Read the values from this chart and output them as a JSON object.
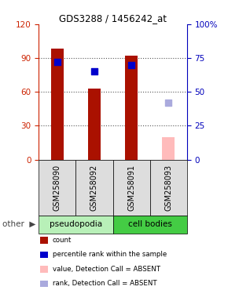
{
  "title": "GDS3288 / 1456242_at",
  "samples": [
    "GSM258090",
    "GSM258092",
    "GSM258091",
    "GSM258093"
  ],
  "groups": [
    "pseudopodia",
    "pseudopodia",
    "cell bodies",
    "cell bodies"
  ],
  "group_colors": {
    "pseudopodia": "#b8f0b8",
    "cell bodies": "#44cc44"
  },
  "bar_color_present": "#aa1100",
  "bar_color_absent": "#ffbbbb",
  "dot_color_present": "#0000cc",
  "dot_color_absent": "#aaaadd",
  "counts": [
    98,
    63,
    92,
    20
  ],
  "ranks": [
    72,
    65,
    70,
    42
  ],
  "detection": [
    "P",
    "P",
    "P",
    "A"
  ],
  "ylim_left": [
    0,
    120
  ],
  "ylim_right": [
    0,
    100
  ],
  "yticks_left": [
    0,
    30,
    60,
    90,
    120
  ],
  "yticks_right": [
    0,
    25,
    50,
    75,
    100
  ],
  "ytick_labels_left": [
    "0",
    "30",
    "60",
    "90",
    "120"
  ],
  "ytick_labels_right": [
    "0",
    "25",
    "50",
    "75",
    "100%"
  ],
  "left_tick_color": "#cc2200",
  "right_tick_color": "#0000bb",
  "grid_color": "#555555",
  "legend_items": [
    {
      "label": "count",
      "color": "#aa1100"
    },
    {
      "label": "percentile rank within the sample",
      "color": "#0000cc"
    },
    {
      "label": "value, Detection Call = ABSENT",
      "color": "#ffbbbb"
    },
    {
      "label": "rank, Detection Call = ABSENT",
      "color": "#aaaadd"
    }
  ],
  "bar_width": 0.35,
  "dot_size": 30,
  "other_label": "other"
}
